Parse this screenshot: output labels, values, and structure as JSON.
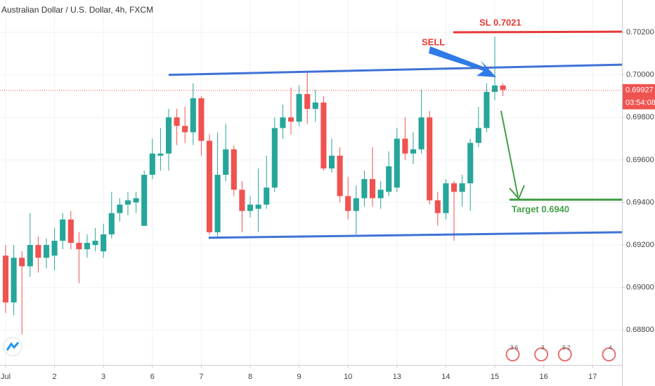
{
  "chart_data": {
    "type": "candlestick",
    "title": "Australian Dollar / U.S. Dollar, 4h, FXCM",
    "open": [
      0.6915,
      0.6893,
      0.6914,
      0.691,
      0.692,
      0.6914,
      0.6915,
      0.6922,
      0.6932,
      0.6921,
      0.6918,
      0.692,
      0.6917,
      0.6925,
      0.6935,
      0.6939,
      0.694,
      0.6929,
      0.6953,
      0.6962,
      0.6963,
      0.698,
      0.6976,
      0.6973,
      0.6989,
      0.6969,
      0.6926,
      0.6953,
      0.6965,
      0.6946,
      0.6936,
      0.6937,
      0.6939,
      0.6947,
      0.6975,
      0.698,
      0.6978,
      0.6991,
      0.6984,
      0.6987,
      0.6956,
      0.6962,
      0.6943,
      0.6936,
      0.6942,
      0.6951,
      0.6942,
      0.6945,
      0.6947,
      0.697,
      0.6963,
      0.6965,
      0.698,
      0.6941,
      0.6935,
      0.6949,
      0.6945,
      0.6949,
      0.6968,
      0.6975,
      0.6992,
      0.6995
    ],
    "high": [
      0.692,
      0.692,
      0.6917,
      0.6935,
      0.6924,
      0.6923,
      0.6928,
      0.6935,
      0.6936,
      0.6926,
      0.6925,
      0.6928,
      0.693,
      0.6945,
      0.6942,
      0.6945,
      0.6945,
      0.6955,
      0.697,
      0.6975,
      0.6984,
      0.6984,
      0.6985,
      0.6996,
      0.699,
      0.6972,
      0.6973,
      0.6977,
      0.6967,
      0.695,
      0.6943,
      0.6956,
      0.6962,
      0.698,
      0.6986,
      0.6994,
      0.6995,
      0.7002,
      0.6993,
      0.699,
      0.697,
      0.6966,
      0.6952,
      0.6948,
      0.6955,
      0.6966,
      0.695,
      0.6964,
      0.6975,
      0.698,
      0.6973,
      0.6993,
      0.6983,
      0.6945,
      0.6951,
      0.695,
      0.6953,
      0.697,
      0.6985,
      0.6996,
      0.7018,
      0.6996
    ],
    "low": [
      0.6888,
      0.6887,
      0.6878,
      0.6905,
      0.6907,
      0.6909,
      0.6908,
      0.6918,
      0.6918,
      0.6902,
      0.6914,
      0.6917,
      0.6914,
      0.6923,
      0.6931,
      0.6934,
      0.6935,
      0.6929,
      0.6951,
      0.6955,
      0.6955,
      0.6967,
      0.6968,
      0.6967,
      0.6962,
      0.6925,
      0.6923,
      0.695,
      0.6943,
      0.6926,
      0.6933,
      0.6926,
      0.6937,
      0.6945,
      0.697,
      0.6972,
      0.6976,
      0.6977,
      0.6978,
      0.6955,
      0.6954,
      0.694,
      0.6932,
      0.6925,
      0.6938,
      0.6938,
      0.6937,
      0.6943,
      0.6945,
      0.696,
      0.6958,
      0.6963,
      0.6939,
      0.6929,
      0.6932,
      0.6922,
      0.6938,
      0.6936,
      0.6966,
      0.6973,
      0.6988,
      0.699
    ],
    "close": [
      0.6893,
      0.6914,
      0.691,
      0.692,
      0.6914,
      0.692,
      0.6922,
      0.6932,
      0.6921,
      0.6918,
      0.6921,
      0.6922,
      0.6925,
      0.6935,
      0.6939,
      0.6941,
      0.6942,
      0.6953,
      0.6963,
      0.6963,
      0.698,
      0.6976,
      0.6973,
      0.6989,
      0.6969,
      0.6926,
      0.6953,
      0.6965,
      0.6946,
      0.6936,
      0.6939,
      0.6939,
      0.6947,
      0.6975,
      0.698,
      0.6978,
      0.6991,
      0.6984,
      0.6987,
      0.6956,
      0.6962,
      0.6943,
      0.6936,
      0.6942,
      0.6951,
      0.6942,
      0.6946,
      0.6957,
      0.697,
      0.6963,
      0.6965,
      0.698,
      0.6941,
      0.6935,
      0.6949,
      0.6945,
      0.6949,
      0.6968,
      0.6975,
      0.6992,
      0.6995,
      0.6993
    ],
    "up_color": "#26a69a",
    "down_color": "#ef5350",
    "xlim": [
      -0.69,
      75.6
    ],
    "xticks": [
      {
        "value": 0,
        "label": "Jul"
      },
      {
        "value": 6,
        "label": "2"
      },
      {
        "value": 12,
        "label": "3"
      },
      {
        "value": 18,
        "label": "6"
      },
      {
        "value": 24,
        "label": "7"
      },
      {
        "value": 30,
        "label": "8"
      },
      {
        "value": 36,
        "label": "9"
      },
      {
        "value": 42,
        "label": "10"
      },
      {
        "value": 48,
        "label": "13"
      },
      {
        "value": 54,
        "label": "14"
      },
      {
        "value": 60,
        "label": "15"
      },
      {
        "value": 66,
        "label": "16"
      },
      {
        "value": 72,
        "label": "17"
      }
    ],
    "ylim": [
      0.68636,
      0.70352
    ],
    "yticks": [
      {
        "value": 0.688,
        "label": "0.68800"
      },
      {
        "value": 0.69,
        "label": "0.69000"
      },
      {
        "value": 0.692,
        "label": "0.69200"
      },
      {
        "value": 0.694,
        "label": "0.69400"
      },
      {
        "value": 0.696,
        "label": "0.69600"
      },
      {
        "value": 0.698,
        "label": "0.69800"
      },
      {
        "value": 0.7,
        "label": "0.70000"
      },
      {
        "value": 0.702,
        "label": "0.70200"
      }
    ],
    "grid": true,
    "last_price": {
      "value": 0.69927,
      "label": "0.69927"
    },
    "countdown": "03:54:08",
    "trendlines": [
      {
        "x": [
          20,
          75.6
        ],
        "y": [
          0.7,
          0.70048
        ],
        "color": "#3f72d6"
      },
      {
        "x": [
          24.9,
          75.6
        ],
        "y": [
          0.69234,
          0.6926
        ],
        "color": "#3f72d6"
      },
      {
        "x": [
          54.9,
          75.6
        ],
        "y": [
          0.702,
          0.70203
        ],
        "color": "#e53935"
      },
      {
        "x": [
          61.8,
          75.6
        ],
        "y": [
          0.69413,
          0.69413
        ],
        "color": "#43a047"
      }
    ],
    "annotations": [
      "SL 0.7021",
      "SELL",
      "Target 0.6940"
    ],
    "events": [
      "3 6",
      "3",
      "9 2",
      "4"
    ]
  }
}
